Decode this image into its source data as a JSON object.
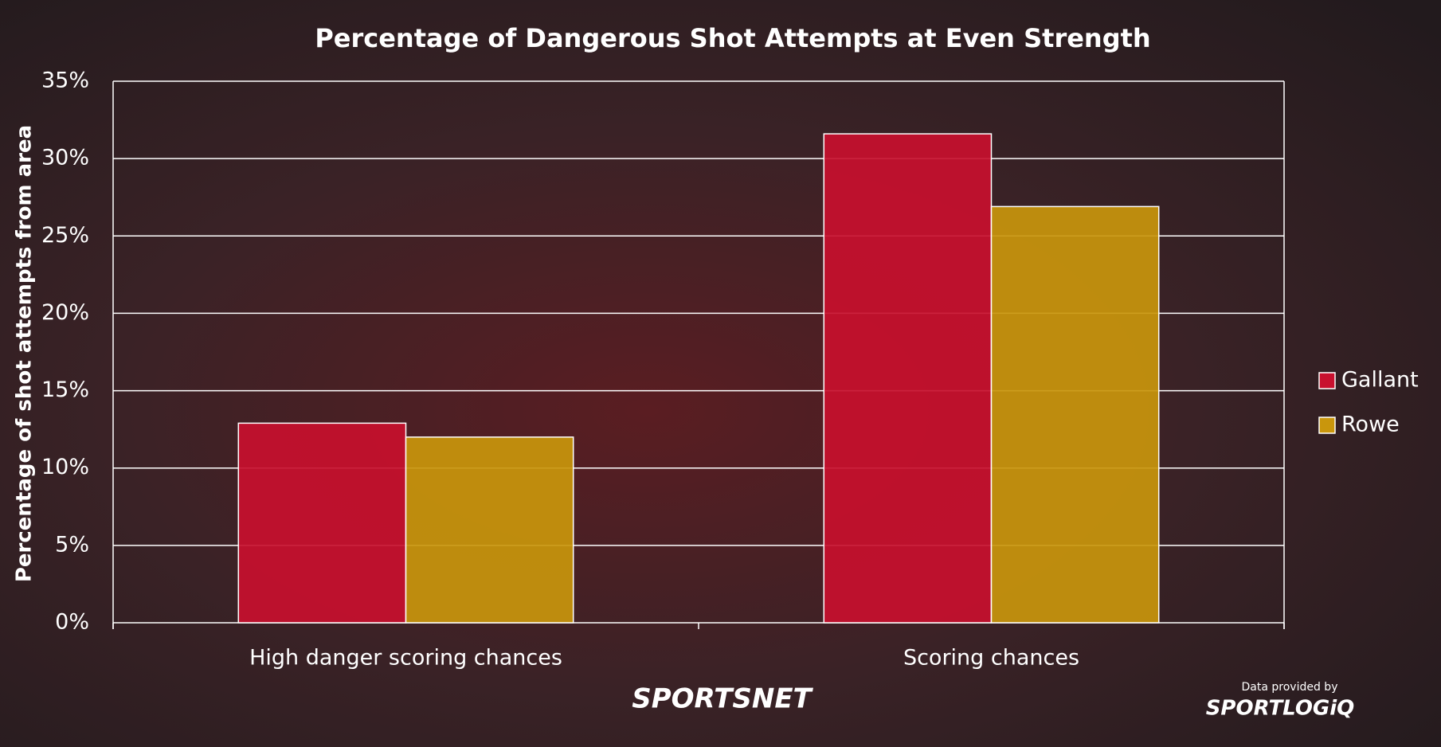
{
  "chart_data": {
    "type": "bar",
    "title": "Percentage of Dangerous Shot Attempts at Even Strength",
    "y_label": "Percentage of shot attempts from area",
    "categories": [
      "High danger scoring chances",
      "Scoring chances"
    ],
    "series": [
      {
        "name": "Gallant",
        "color": "#c8102e",
        "values": [
          12.9,
          31.6
        ]
      },
      {
        "name": "Rowe",
        "color": "#c9960c",
        "values": [
          12.0,
          26.9
        ]
      }
    ],
    "ylim": [
      0,
      35
    ],
    "yticks": [
      {
        "value": 0,
        "label": "0%"
      },
      {
        "value": 5,
        "label": "5%"
      },
      {
        "value": 10,
        "label": "10%"
      },
      {
        "value": 15,
        "label": "15%"
      },
      {
        "value": 20,
        "label": "20%"
      },
      {
        "value": 25,
        "label": "25%"
      },
      {
        "value": 30,
        "label": "30%"
      },
      {
        "value": 35,
        "label": "35%"
      }
    ],
    "grid": true,
    "legend": "right",
    "source_label": "Data provided by",
    "logos": [
      "SPORTSNET",
      "SPORTLOGiQ"
    ]
  }
}
